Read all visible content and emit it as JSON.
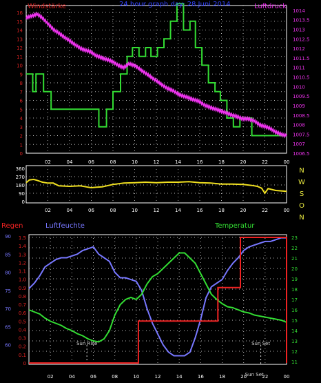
{
  "colors": {
    "background": "#000000",
    "frame": "#ffffff",
    "grid": "#bbbbbb",
    "wind": "#33dd33",
    "pressure": "#ee33ee",
    "direction": "#f0e020",
    "compass": "#e8e840",
    "rain": "#ee2222",
    "humidity": "#7777ff",
    "temperature": "#33dd33",
    "title": "#3344ff",
    "label_windstaerke": "#dd2222",
    "label_luftdruck": "#ee33ee",
    "sun": "#dddddd"
  },
  "chart_data": [
    {
      "type": "line",
      "title": "24 hour graph day: 28.Juni 2014",
      "left_label": "Windstärke",
      "right_label": "Luftdruck",
      "x_ticks": [
        "02",
        "04",
        "06",
        "08",
        "10",
        "12",
        "14",
        "16",
        "18",
        "20",
        "22",
        "00"
      ],
      "xlim": [
        0,
        24
      ],
      "left_axis": {
        "min": 0,
        "max": 16,
        "ticks": [
          "0",
          "1",
          "2",
          "3",
          "4",
          "5",
          "6",
          "7",
          "8",
          "9",
          "10",
          "11",
          "12",
          "13",
          "14",
          "15",
          "16"
        ]
      },
      "right_axis": {
        "min": 1006.5,
        "max": 1014.25,
        "ticks": [
          "1006.5",
          "1007",
          "1007.5",
          "1008",
          "1008.5",
          "1009",
          "1009.5",
          "1010",
          "1010.5",
          "1011",
          "1011.5",
          "1012",
          "1012.5",
          "1013",
          "1013.5",
          "1014"
        ]
      },
      "series": [
        {
          "name": "Windstärke",
          "axis": "left",
          "step": true,
          "x": [
            0,
            0.6,
            0.9,
            1.6,
            2.3,
            6.7,
            7.4,
            8.0,
            8.7,
            9.3,
            9.8,
            10.4,
            11.0,
            11.5,
            12.1,
            12.7,
            13.3,
            13.9,
            14.5,
            15.1,
            15.6,
            16.2,
            16.8,
            17.4,
            17.9,
            18.5,
            19.1,
            19.7,
            20.2,
            20.8,
            21.4,
            22.1,
            24
          ],
          "y": [
            9,
            7,
            9,
            7,
            5,
            3,
            5,
            7,
            9,
            11,
            12,
            11,
            12,
            11,
            12,
            13,
            15,
            17,
            14,
            15,
            12,
            10,
            8,
            7,
            6,
            4,
            3,
            4,
            4,
            2,
            2,
            2,
            2
          ]
        },
        {
          "name": "Luftdruck",
          "axis": "right",
          "x": [
            0,
            0.5,
            1.0,
            1.5,
            2.0,
            2.5,
            3.0,
            3.5,
            4.0,
            4.5,
            5.0,
            5.5,
            6.0,
            6.5,
            7.0,
            7.5,
            8.0,
            8.5,
            9.0,
            9.5,
            10.0,
            10.5,
            11.0,
            11.5,
            12.0,
            12.5,
            13.0,
            13.5,
            14.0,
            14.5,
            15.0,
            15.5,
            16.0,
            16.5,
            17.0,
            17.5,
            18.0,
            18.5,
            19.0,
            19.5,
            20.0,
            20.5,
            21.0,
            21.5,
            22.0,
            22.5,
            23.0,
            23.5,
            24.0
          ],
          "y": [
            1013.6,
            1013.7,
            1013.8,
            1013.6,
            1013.3,
            1013.0,
            1012.8,
            1012.6,
            1012.4,
            1012.2,
            1012.0,
            1011.9,
            1011.8,
            1011.6,
            1011.5,
            1011.4,
            1011.3,
            1011.1,
            1011.0,
            1011.2,
            1011.1,
            1010.9,
            1010.7,
            1010.5,
            1010.3,
            1010.1,
            1009.9,
            1009.8,
            1009.6,
            1009.5,
            1009.4,
            1009.3,
            1009.2,
            1009.0,
            1008.9,
            1008.8,
            1008.7,
            1008.6,
            1008.5,
            1008.4,
            1008.3,
            1008.3,
            1008.2,
            1008.0,
            1007.9,
            1007.8,
            1007.6,
            1007.5,
            1007.4
          ]
        }
      ]
    },
    {
      "type": "line",
      "x_ticks": [
        "02",
        "04",
        "06",
        "08",
        "10",
        "12",
        "14",
        "16",
        "18",
        "20",
        "22",
        "00"
      ],
      "xlim": [
        0,
        24
      ],
      "left_axis": {
        "min": 0,
        "max": 360,
        "ticks": [
          "0",
          "90",
          "180",
          "270",
          "360"
        ]
      },
      "right_labels": [
        "N",
        "W",
        "S",
        "O",
        "N"
      ],
      "series": [
        {
          "name": "Windrichtung",
          "x": [
            0,
            0.3,
            0.7,
            1.0,
            1.5,
            2.0,
            2.5,
            3.0,
            4.0,
            5.0,
            5.5,
            6.0,
            6.5,
            7.0,
            8.0,
            9.0,
            10.0,
            11.0,
            12.0,
            13.0,
            14.0,
            15.0,
            16.0,
            17.0,
            18.0,
            19.0,
            20.0,
            20.8,
            21.3,
            21.7,
            22.0,
            22.3,
            23.0,
            24.0
          ],
          "y": [
            205,
            235,
            240,
            230,
            210,
            200,
            200,
            170,
            165,
            170,
            160,
            150,
            155,
            160,
            185,
            200,
            205,
            210,
            205,
            210,
            210,
            215,
            205,
            200,
            190,
            190,
            185,
            175,
            165,
            145,
            90,
            140,
            120,
            110
          ]
        }
      ]
    },
    {
      "type": "line",
      "left_label": "Regen",
      "mid_label": "Luftfeuchte",
      "right_label": "Temperatur",
      "x_ticks": [
        "02",
        "04",
        "06",
        "08",
        "10",
        "12",
        "14",
        "16",
        "18",
        "20",
        "22",
        "00"
      ],
      "xlim": [
        0,
        24
      ],
      "rain_axis": {
        "min": 0,
        "max": 1.5,
        "ticks": [
          "0",
          "0.1",
          "0.2",
          "0.3",
          "0.4",
          "0.5",
          "0.6",
          "0.7",
          "0.8",
          "0.9",
          "1.0",
          "1.1",
          "1.2",
          "1.3",
          "1.4",
          "1.5"
        ]
      },
      "humidity_axis": {
        "min": 55,
        "max": 90,
        "ticks": [
          "60",
          "65",
          "70",
          "75",
          "80",
          "85",
          "90"
        ]
      },
      "temperature_axis": {
        "min": 11,
        "max": 23,
        "ticks": [
          "11",
          "12",
          "13",
          "14",
          "15",
          "16",
          "17",
          "18",
          "19",
          "20",
          "21",
          "22",
          "23"
        ]
      },
      "annotations": [
        {
          "label": "Sun Rise",
          "x": 5.4
        },
        {
          "label": "Sun Set",
          "x": 21.6
        },
        {
          "label": "Sun Set",
          "x": 21.0
        }
      ],
      "series": [
        {
          "name": "Regen",
          "axis": "rain",
          "step": true,
          "x": [
            0,
            10.2,
            17.6,
            19.7,
            23.9,
            24
          ],
          "y": [
            0,
            0.5,
            0.9,
            1.5,
            1.5,
            0
          ]
        },
        {
          "name": "Luftfeuchte",
          "axis": "humidity",
          "x": [
            0,
            0.5,
            1.0,
            1.5,
            2.0,
            2.5,
            3.0,
            3.5,
            4.0,
            4.5,
            5.0,
            5.5,
            6.0,
            6.5,
            7.0,
            7.5,
            8.0,
            8.5,
            9.0,
            9.5,
            10.0,
            10.5,
            11.0,
            11.5,
            12.0,
            12.5,
            13.0,
            13.5,
            14.0,
            14.5,
            15.0,
            15.5,
            16.0,
            16.5,
            17.0,
            17.5,
            18.0,
            18.5,
            19.0,
            19.5,
            20.0,
            20.5,
            21.0,
            21.5,
            22.0,
            22.5,
            23.0,
            23.5,
            24.0
          ],
          "y": [
            75.5,
            77.0,
            79.0,
            81.5,
            82.5,
            83.5,
            84.0,
            84.0,
            84.5,
            85.0,
            86.0,
            86.5,
            87.0,
            85.0,
            84.0,
            83.0,
            80.0,
            78.5,
            78.5,
            78.0,
            77.5,
            75.0,
            70.0,
            66.0,
            63.0,
            60.0,
            58.0,
            57.0,
            57.0,
            57.0,
            58.0,
            62.0,
            67.0,
            73.0,
            76.0,
            77.0,
            78.0,
            80.5,
            82.5,
            84.0,
            86.0,
            87.0,
            87.5,
            88.0,
            88.5,
            88.5,
            89.0,
            89.5,
            89.5
          ]
        },
        {
          "name": "Temperatur",
          "axis": "temperature",
          "x": [
            0,
            0.5,
            1.0,
            1.5,
            2.0,
            2.5,
            3.0,
            3.5,
            4.0,
            4.5,
            5.0,
            5.5,
            6.0,
            6.5,
            7.0,
            7.5,
            8.0,
            8.5,
            9.0,
            9.5,
            10.0,
            10.5,
            11.0,
            11.5,
            12.0,
            12.5,
            13.0,
            13.5,
            14.0,
            14.5,
            15.0,
            15.5,
            16.0,
            16.5,
            17.0,
            17.5,
            18.0,
            18.5,
            19.0,
            19.5,
            20.0,
            20.5,
            21.0,
            21.5,
            22.0,
            22.5,
            23.0,
            23.5,
            24.0
          ],
          "y": [
            16.0,
            15.8,
            15.6,
            15.2,
            14.9,
            14.7,
            14.5,
            14.2,
            14.0,
            13.7,
            13.5,
            13.2,
            13.0,
            12.9,
            13.2,
            14.0,
            15.5,
            16.5,
            17.0,
            17.2,
            17.0,
            17.5,
            18.5,
            19.2,
            19.5,
            20.0,
            20.5,
            21.0,
            21.5,
            21.5,
            21.0,
            20.5,
            19.5,
            18.5,
            17.5,
            17.0,
            16.6,
            16.3,
            16.2,
            16.0,
            15.8,
            15.7,
            15.5,
            15.4,
            15.3,
            15.2,
            15.1,
            15.0,
            14.8
          ]
        }
      ]
    }
  ]
}
